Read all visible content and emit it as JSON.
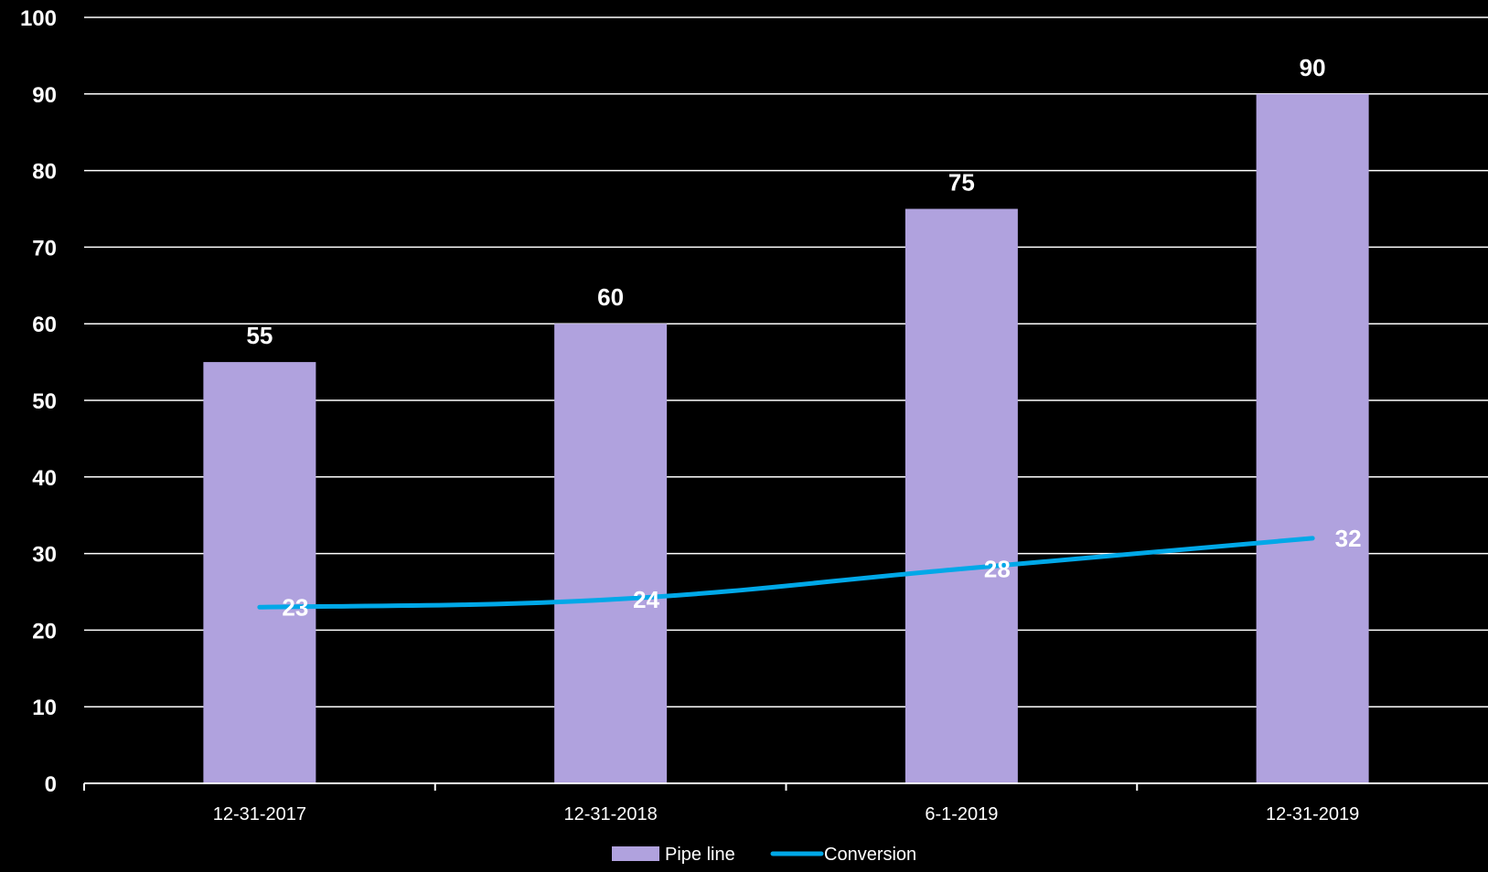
{
  "chart_data": {
    "type": "bar",
    "categories": [
      "12-31-2017",
      "12-31-2018",
      "6-1-2019",
      "12-31-2019"
    ],
    "series": [
      {
        "name": "Pipe line",
        "type": "bar",
        "values": [
          55,
          60,
          75,
          90
        ],
        "color": "#b0a2de"
      },
      {
        "name": "Conversion",
        "type": "line",
        "values": [
          23,
          24,
          28,
          32
        ],
        "color": "#00a8e8"
      }
    ],
    "yticks": [
      "0",
      "10",
      "20",
      "30",
      "40",
      "50",
      "60",
      "70",
      "80",
      "90",
      "100"
    ],
    "ylim": [
      0,
      100
    ],
    "grid": true,
    "legend": "bottom",
    "background": "#000000",
    "gridcolor": "#ffffff"
  }
}
